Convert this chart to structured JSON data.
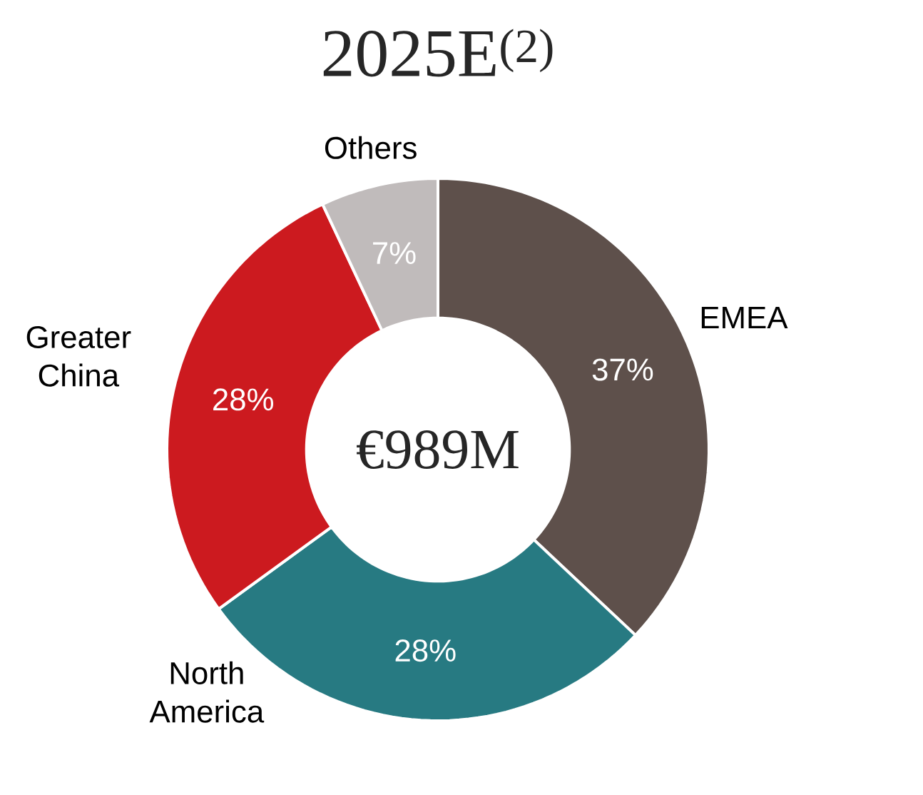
{
  "chart_data": {
    "type": "donut",
    "title": "2025E$^{(2)}$",
    "categories": [
      "EMEA",
      "North America",
      "Greater China",
      "Others"
    ],
    "values": [
      37,
      28,
      28,
      7
    ],
    "colors": [
      "#5e504b",
      "#277a82",
      "#cc1a1f",
      "#c0bbbb"
    ],
    "value_labels": [
      "37%",
      "28%",
      "28%",
      "7%"
    ],
    "annotations": [
      "€989M"
    ]
  }
}
